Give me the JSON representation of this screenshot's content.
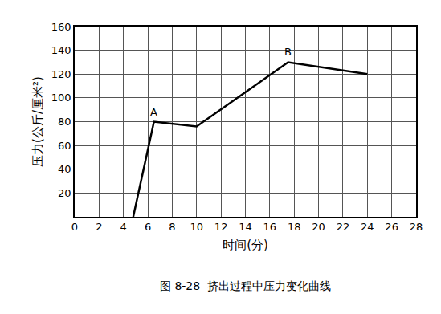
{
  "chart_data": {
    "type": "line",
    "title": "图 8-28  挤出过程中压力变化曲线",
    "x_label": "时间(分)",
    "y_label": "压力(公斤/厘米²)",
    "x": [
      4.8,
      6.5,
      10,
      17.5,
      24
    ],
    "values": [
      0,
      80,
      76,
      130,
      120
    ],
    "color": "#000000",
    "xlim": [
      0,
      28
    ],
    "xticks": [
      0,
      2,
      4,
      6,
      8,
      10,
      12,
      14,
      16,
      18,
      20,
      22,
      24,
      26,
      28
    ],
    "ylim": [
      0,
      160
    ],
    "yticks": [
      20,
      40,
      60,
      80,
      100,
      120,
      140,
      160
    ],
    "grid": true,
    "annotations": [
      {
        "text": "A",
        "x": 6.5,
        "y": 80
      },
      {
        "text": "B",
        "x": 17.5,
        "y": 130
      }
    ]
  }
}
